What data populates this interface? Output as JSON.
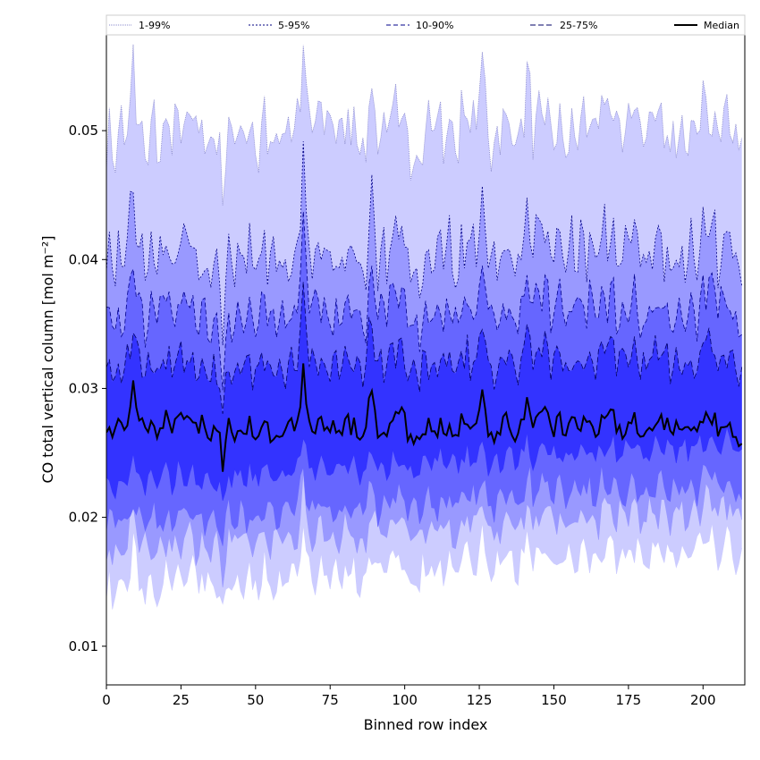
{
  "chart_data": {
    "type": "area",
    "xlabel": "Binned row index",
    "ylabel": "CO total vertical column [mol m⁻²]",
    "xlim": [
      0,
      214
    ],
    "ylim": [
      0.007,
      0.0575
    ],
    "x_ticks": [
      0,
      25,
      50,
      75,
      100,
      125,
      150,
      175,
      200
    ],
    "y_ticks": [
      0.01,
      0.02,
      0.03,
      0.04,
      0.05
    ],
    "y_tick_labels": [
      "0.01",
      "0.02",
      "0.03",
      "0.04",
      "0.05"
    ],
    "grid": false,
    "legend_position": "top",
    "n_points": 214,
    "series": [
      {
        "name": "1-99%",
        "lower_mean": 0.0145,
        "upper_mean": 0.0495,
        "fill": "#ccccff",
        "line": "#8888cc",
        "dash": "1,1"
      },
      {
        "name": "5-95%",
        "lower_mean": 0.0175,
        "upper_mean": 0.04,
        "fill": "#9999ff",
        "line": "#000080",
        "dash": "2,2"
      },
      {
        "name": "10-90%",
        "lower_mean": 0.0195,
        "upper_mean": 0.0355,
        "fill": "#6666ff",
        "line": "#00008b",
        "dash": "5,3"
      },
      {
        "name": "25-75%",
        "lower_mean": 0.0225,
        "upper_mean": 0.0315,
        "fill": "#3333ff",
        "line": "#000066",
        "dash": "6,3"
      },
      {
        "name": "Median",
        "mean": 0.027,
        "line": "#000000"
      }
    ],
    "spikes": [
      {
        "x": 9,
        "amp": 1.4
      },
      {
        "x": 39,
        "amp": -1.8
      },
      {
        "x": 66,
        "amp": 1.9
      },
      {
        "x": 89,
        "amp": 1.2
      },
      {
        "x": 126,
        "amp": 1.0
      },
      {
        "x": 141,
        "amp": 0.9
      }
    ]
  },
  "legend": {
    "items": [
      "1-99%",
      "5-95%",
      "10-90%",
      "25-75%",
      "Median"
    ]
  }
}
